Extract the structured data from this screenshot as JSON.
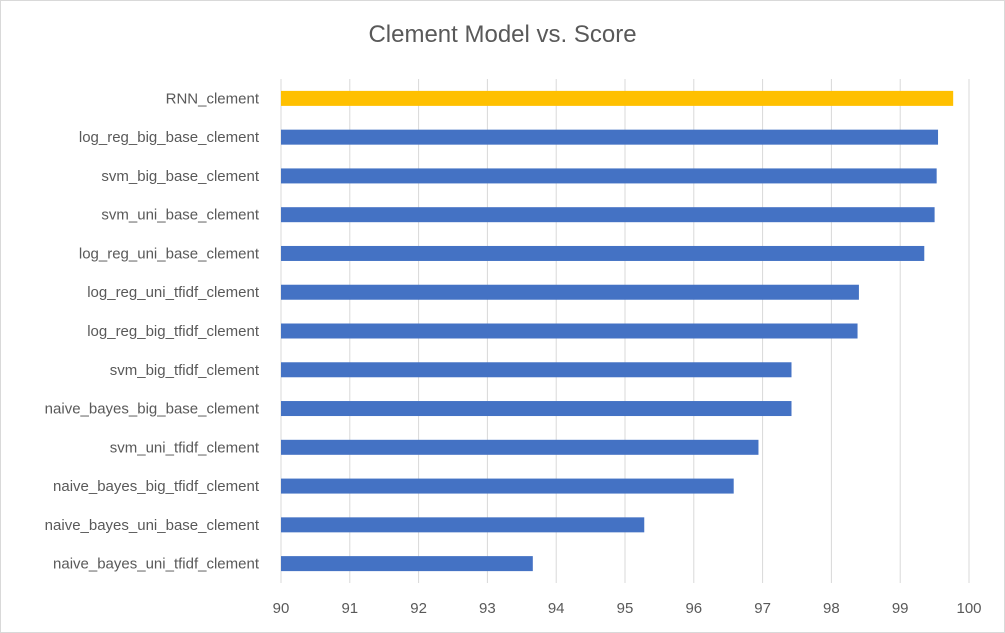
{
  "chart_data": {
    "type": "bar",
    "orientation": "horizontal",
    "title": "Clement Model vs. Score",
    "xlabel": "",
    "ylabel": "",
    "xlim": [
      90,
      100
    ],
    "x_ticks": [
      90,
      91,
      92,
      93,
      94,
      95,
      96,
      97,
      98,
      99,
      100
    ],
    "grid": true,
    "legend": "none",
    "categories": [
      "RNN_clement",
      "log_reg_big_base_clement",
      "svm_big_base_clement",
      "svm_uni_base_clement",
      "log_reg_uni_base_clement",
      "log_reg_uni_tfidf_clement",
      "log_reg_big_tfidf_clement",
      "svm_big_tfidf_clement",
      "naive_bayes_big_base_clement",
      "svm_uni_tfidf_clement",
      "naive_bayes_big_tfidf_clement",
      "naive_bayes_uni_base_clement",
      "naive_bayes_uni_tfidf_clement"
    ],
    "values": [
      99.77,
      99.55,
      99.53,
      99.5,
      99.35,
      98.4,
      98.38,
      97.42,
      97.42,
      96.94,
      96.58,
      95.28,
      93.66
    ],
    "colors": [
      "#FFC000",
      "#4472C4",
      "#4472C4",
      "#4472C4",
      "#4472C4",
      "#4472C4",
      "#4472C4",
      "#4472C4",
      "#4472C4",
      "#4472C4",
      "#4472C4",
      "#4472C4",
      "#4472C4"
    ]
  }
}
